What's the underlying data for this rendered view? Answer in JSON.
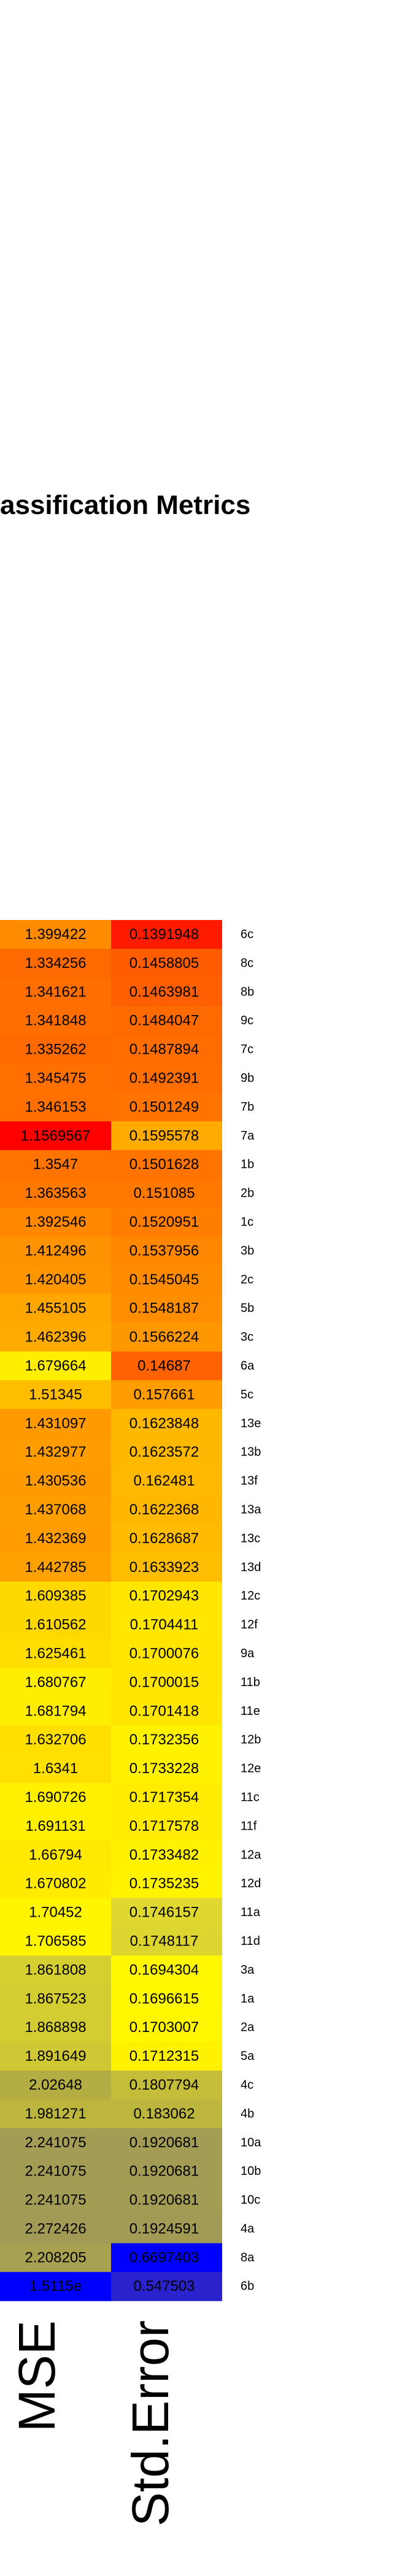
{
  "chart_data": {
    "type": "heatmap",
    "title": "assification Metrics",
    "columns": [
      "MSE",
      "Std.Error"
    ],
    "rows": [
      {
        "label": "6c",
        "values": [
          "1.399422",
          "0.1391948"
        ],
        "colors": [
          "#ff8c00",
          "#ff1a00"
        ]
      },
      {
        "label": "8c",
        "values": [
          "1.334256",
          "0.1458805"
        ],
        "colors": [
          "#ff6a00",
          "#ff5c00"
        ]
      },
      {
        "label": "8b",
        "values": [
          "1.341621",
          "0.1463981"
        ],
        "colors": [
          "#ff6e00",
          "#ff5f00"
        ]
      },
      {
        "label": "9c",
        "values": [
          "1.341848",
          "0.1484047"
        ],
        "colors": [
          "#ff6e00",
          "#ff6a00"
        ]
      },
      {
        "label": "7c",
        "values": [
          "1.335262",
          "0.1487894"
        ],
        "colors": [
          "#ff6a00",
          "#ff6c00"
        ]
      },
      {
        "label": "9b",
        "values": [
          "1.345475",
          "0.1492391"
        ],
        "colors": [
          "#ff7000",
          "#ff6e00"
        ]
      },
      {
        "label": "7b",
        "values": [
          "1.346153",
          "0.1501249"
        ],
        "colors": [
          "#ff7000",
          "#ff7300"
        ]
      },
      {
        "label": "7a",
        "values": [
          "1.1569567",
          "0.1595578"
        ],
        "colors": [
          "#ff0000",
          "#ffaa00"
        ]
      },
      {
        "label": "1b",
        "values": [
          "1.3547",
          "0.1501628"
        ],
        "colors": [
          "#ff7400",
          "#ff7300"
        ]
      },
      {
        "label": "2b",
        "values": [
          "1.363563",
          "0.151085"
        ],
        "colors": [
          "#ff7900",
          "#ff7800"
        ]
      },
      {
        "label": "1c",
        "values": [
          "1.392546",
          "0.1520951"
        ],
        "colors": [
          "#ff8800",
          "#ff7e00"
        ]
      },
      {
        "label": "3b",
        "values": [
          "1.412496",
          "0.1537956"
        ],
        "colors": [
          "#ff9200",
          "#ff8700"
        ]
      },
      {
        "label": "2c",
        "values": [
          "1.420405",
          "0.1545045"
        ],
        "colors": [
          "#ff9600",
          "#ff8b00"
        ]
      },
      {
        "label": "5b",
        "values": [
          "1.455105",
          "0.1548187"
        ],
        "colors": [
          "#ffa700",
          "#ff8d00"
        ]
      },
      {
        "label": "3c",
        "values": [
          "1.462396",
          "0.1566224"
        ],
        "colors": [
          "#ffaa00",
          "#ff9700"
        ]
      },
      {
        "label": "6a",
        "values": [
          "1.679664",
          "0.14687"
        ],
        "colors": [
          "#ffee00",
          "#ff6200"
        ]
      },
      {
        "label": "5c",
        "values": [
          "1.51345",
          "0.157661"
        ],
        "colors": [
          "#ffbd00",
          "#ff9d00"
        ]
      },
      {
        "label": "13e",
        "values": [
          "1.431097",
          "0.1623848"
        ],
        "colors": [
          "#ff9b00",
          "#ffb800"
        ]
      },
      {
        "label": "13b",
        "values": [
          "1.432977",
          "0.1623572"
        ],
        "colors": [
          "#ff9c00",
          "#ffb800"
        ]
      },
      {
        "label": "13f",
        "values": [
          "1.430536",
          "0.162481"
        ],
        "colors": [
          "#ff9b00",
          "#ffb900"
        ]
      },
      {
        "label": "13a",
        "values": [
          "1.437068",
          "0.1622368"
        ],
        "colors": [
          "#ff9e00",
          "#ffb700"
        ]
      },
      {
        "label": "13c",
        "values": [
          "1.432369",
          "0.1628687"
        ],
        "colors": [
          "#ff9c00",
          "#ffbb00"
        ]
      },
      {
        "label": "13d",
        "values": [
          "1.442785",
          "0.1633923"
        ],
        "colors": [
          "#ffa100",
          "#ffbd00"
        ]
      },
      {
        "label": "12c",
        "values": [
          "1.609385",
          "0.1702943"
        ],
        "colors": [
          "#ffd800",
          "#ffe600"
        ]
      },
      {
        "label": "12f",
        "values": [
          "1.610562",
          "0.1704411"
        ],
        "colors": [
          "#ffd800",
          "#ffe700"
        ]
      },
      {
        "label": "9a",
        "values": [
          "1.625461",
          "0.1700076"
        ],
        "colors": [
          "#ffdd00",
          "#ffe500"
        ]
      },
      {
        "label": "11b",
        "values": [
          "1.680767",
          "0.1700015"
        ],
        "colors": [
          "#ffee00",
          "#ffe500"
        ]
      },
      {
        "label": "11e",
        "values": [
          "1.681794",
          "0.1701418"
        ],
        "colors": [
          "#ffee00",
          "#ffe600"
        ]
      },
      {
        "label": "12b",
        "values": [
          "1.632706",
          "0.1732356"
        ],
        "colors": [
          "#ffdf00",
          "#fff200"
        ]
      },
      {
        "label": "12e",
        "values": [
          "1.6341",
          "0.1733228"
        ],
        "colors": [
          "#ffe000",
          "#fff200"
        ]
      },
      {
        "label": "11c",
        "values": [
          "1.690726",
          "0.1717354"
        ],
        "colors": [
          "#fff000",
          "#ffec00"
        ]
      },
      {
        "label": "11f",
        "values": [
          "1.691131",
          "0.1717578"
        ],
        "colors": [
          "#fff000",
          "#ffec00"
        ]
      },
      {
        "label": "12a",
        "values": [
          "1.66794",
          "0.1733482"
        ],
        "colors": [
          "#ffe900",
          "#fff200"
        ]
      },
      {
        "label": "12d",
        "values": [
          "1.670802",
          "0.1735235"
        ],
        "colors": [
          "#ffea00",
          "#fff300"
        ]
      },
      {
        "label": "11a",
        "values": [
          "1.70452",
          "0.1746157"
        ],
        "colors": [
          "#fff500",
          "#e0d830"
        ]
      },
      {
        "label": "11d",
        "values": [
          "1.706585",
          "0.1748117"
        ],
        "colors": [
          "#fff500",
          "#ddd530"
        ]
      },
      {
        "label": "3a",
        "values": [
          "1.861808",
          "0.1694304"
        ],
        "colors": [
          "#d6cf30",
          "#fff800"
        ]
      },
      {
        "label": "1a",
        "values": [
          "1.867523",
          "0.1696615"
        ],
        "colors": [
          "#d4cd32",
          "#fff800"
        ]
      },
      {
        "label": "2a",
        "values": [
          "1.868898",
          "0.1703007"
        ],
        "colors": [
          "#d3cc32",
          "#fff600"
        ]
      },
      {
        "label": "5a",
        "values": [
          "1.891649",
          "0.1712315"
        ],
        "colors": [
          "#cfc834",
          "#fff200"
        ]
      },
      {
        "label": "4c",
        "values": [
          "2.02648",
          "0.1807794"
        ],
        "colors": [
          "#b3ad44",
          "#c4bd3a"
        ]
      },
      {
        "label": "4b",
        "values": [
          "1.981271",
          "0.183062"
        ],
        "colors": [
          "#bcb63e",
          "#bcb53e"
        ]
      },
      {
        "label": "10a",
        "values": [
          "2.241075",
          "0.1920681"
        ],
        "colors": [
          "#a39c55",
          "#a39c55"
        ]
      },
      {
        "label": "10b",
        "values": [
          "2.241075",
          "0.1920681"
        ],
        "colors": [
          "#a39c55",
          "#a39c55"
        ]
      },
      {
        "label": "10c",
        "values": [
          "2.241075",
          "0.1920681"
        ],
        "colors": [
          "#a39c55",
          "#a39c55"
        ]
      },
      {
        "label": "4a",
        "values": [
          "2.272426",
          "0.1924591"
        ],
        "colors": [
          "#a29b55",
          "#a29b55"
        ]
      },
      {
        "label": "8a",
        "values": [
          "2.208205",
          "0.6697403"
        ],
        "colors": [
          "#a8a151",
          "#0000ff"
        ]
      },
      {
        "label": "6b",
        "values": [
          "1.5115e",
          "0.547503"
        ],
        "colors": [
          "#0000ff",
          "#2a22cc"
        ]
      }
    ]
  }
}
